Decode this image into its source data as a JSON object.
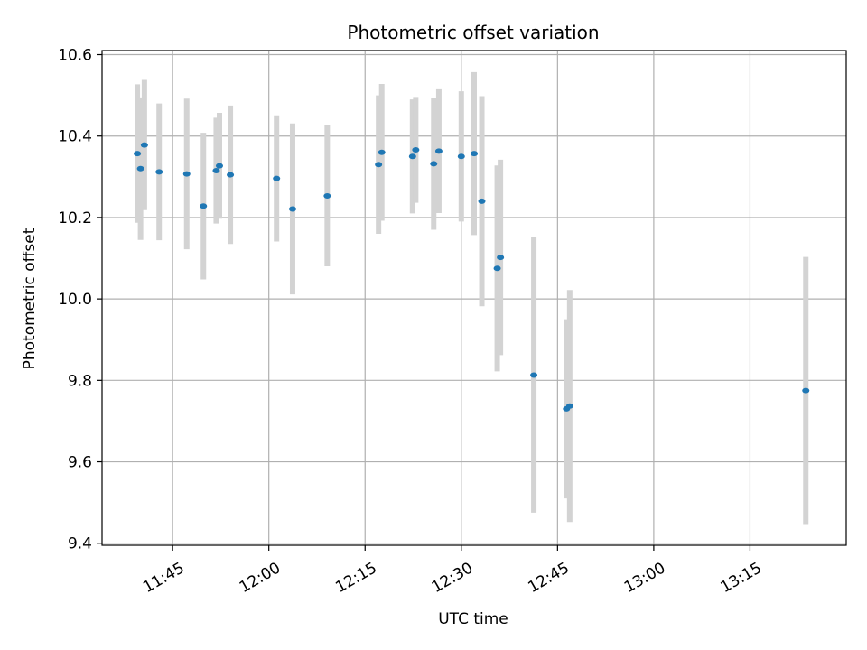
{
  "chart_data": {
    "type": "scatter",
    "title": "Photometric offset variation",
    "xlabel": "UTC time",
    "ylabel": "Photometric offset",
    "xlim": [
      "11:34",
      "13:30"
    ],
    "ylim": [
      9.395,
      10.61
    ],
    "x_ticks": [
      "11:45",
      "12:00",
      "12:15",
      "12:30",
      "12:45",
      "13:00",
      "13:15"
    ],
    "y_ticks": [
      9.4,
      9.6,
      9.8,
      10.0,
      10.2,
      10.4,
      10.6
    ],
    "y_tick_labels": [
      "9.4",
      "9.6",
      "9.8",
      "10.0",
      "10.2",
      "10.4",
      "10.6"
    ],
    "grid": true,
    "point_color": "#1f77b4",
    "errorbar_color": "#d3d3d3",
    "points": [
      {
        "x": "11:39.5",
        "y": 10.357,
        "err": 0.17
      },
      {
        "x": "11:40.0",
        "y": 10.32,
        "err": 0.175
      },
      {
        "x": "11:40.6",
        "y": 10.378,
        "err": 0.16
      },
      {
        "x": "11:42.9",
        "y": 10.312,
        "err": 0.168
      },
      {
        "x": "11:47.2",
        "y": 10.307,
        "err": 0.185
      },
      {
        "x": "11:49.8",
        "y": 10.228,
        "err": 0.18
      },
      {
        "x": "11:51.8",
        "y": 10.315,
        "err": 0.13
      },
      {
        "x": "11:52.3",
        "y": 10.327,
        "err": 0.13
      },
      {
        "x": "11:54.0",
        "y": 10.305,
        "err": 0.17
      },
      {
        "x": "12:01.2",
        "y": 10.296,
        "err": 0.155
      },
      {
        "x": "12:03.7",
        "y": 10.221,
        "err": 0.21
      },
      {
        "x": "12:09.1",
        "y": 10.253,
        "err": 0.173
      },
      {
        "x": "12:17.1",
        "y": 10.33,
        "err": 0.17
      },
      {
        "x": "12:17.6",
        "y": 10.36,
        "err": 0.168
      },
      {
        "x": "12:22.4",
        "y": 10.35,
        "err": 0.14
      },
      {
        "x": "12:22.9",
        "y": 10.366,
        "err": 0.13
      },
      {
        "x": "12:25.7",
        "y": 10.332,
        "err": 0.162
      },
      {
        "x": "12:26.5",
        "y": 10.363,
        "err": 0.152
      },
      {
        "x": "12:30.0",
        "y": 10.35,
        "err": 0.16
      },
      {
        "x": "12:32.0",
        "y": 10.357,
        "err": 0.2
      },
      {
        "x": "12:33.2",
        "y": 10.24,
        "err": 0.258
      },
      {
        "x": "12:35.6",
        "y": 10.075,
        "err": 0.253
      },
      {
        "x": "12:36.1",
        "y": 10.102,
        "err": 0.24
      },
      {
        "x": "12:41.3",
        "y": 9.813,
        "err": 0.338
      },
      {
        "x": "12:46.4",
        "y": 9.73,
        "err": 0.22
      },
      {
        "x": "12:46.9",
        "y": 9.737,
        "err": 0.285
      },
      {
        "x": "13:23.7",
        "y": 9.775,
        "err": 0.328
      }
    ]
  }
}
